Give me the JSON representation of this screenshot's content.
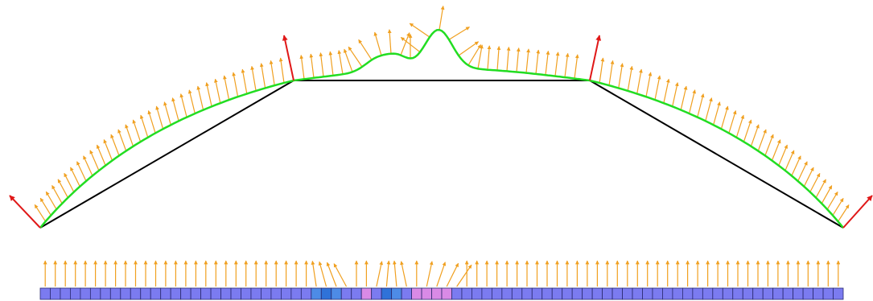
{
  "colors": {
    "background": "#ffffff",
    "control_polygon": "#000000",
    "curve": "#22dd22",
    "normal_arrow": "#f0a020",
    "vertex_normal_arrow": "#e01818",
    "cell_default": "#7b7bf0",
    "cell_dark": "#2f72d8",
    "cell_mid": "#4d8be6",
    "cell_pink": "#d98ae6",
    "cell_border": "#2a2a70"
  },
  "diagram": {
    "control_polygon_vertices": 4,
    "curve_segments": 3,
    "vertex_normals": 4,
    "normal_arrow_count_curve": 92,
    "cell_strip": {
      "cell_count": 80,
      "highlighted_cells": [
        {
          "index": 27,
          "state": "mid"
        },
        {
          "index": 28,
          "state": "dark"
        },
        {
          "index": 29,
          "state": "mid"
        },
        {
          "index": 32,
          "state": "pink"
        },
        {
          "index": 34,
          "state": "dark"
        },
        {
          "index": 35,
          "state": "mid"
        },
        {
          "index": 37,
          "state": "pink"
        },
        {
          "index": 38,
          "state": "pink"
        },
        {
          "index": 39,
          "state": "pink"
        },
        {
          "index": 40,
          "state": "pink"
        }
      ]
    }
  }
}
